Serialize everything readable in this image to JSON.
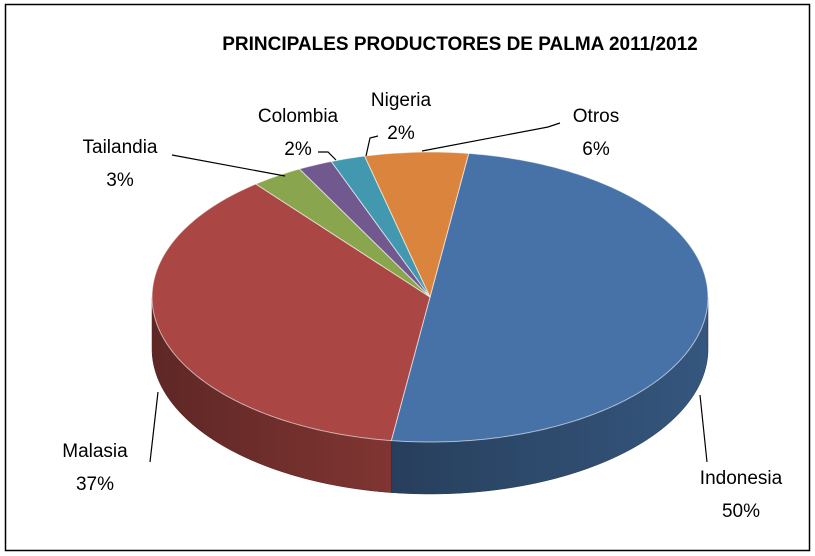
{
  "chart_data": {
    "type": "pie3d",
    "title": "PRINCIPALES PRODUCTORES DE PALMA 2011/2012",
    "categories": [
      "Indonesia",
      "Malasia",
      "Tailandia",
      "Colombia",
      "Nigeria",
      "Otros"
    ],
    "values": [
      50,
      37,
      3,
      2,
      2,
      6
    ],
    "value_labels": [
      "50%",
      "37%",
      "3%",
      "2%",
      "2%",
      "6%"
    ],
    "colors": [
      "#4672a8",
      "#aa4643",
      "#89a54e",
      "#71588f",
      "#4198af",
      "#db843d"
    ]
  }
}
